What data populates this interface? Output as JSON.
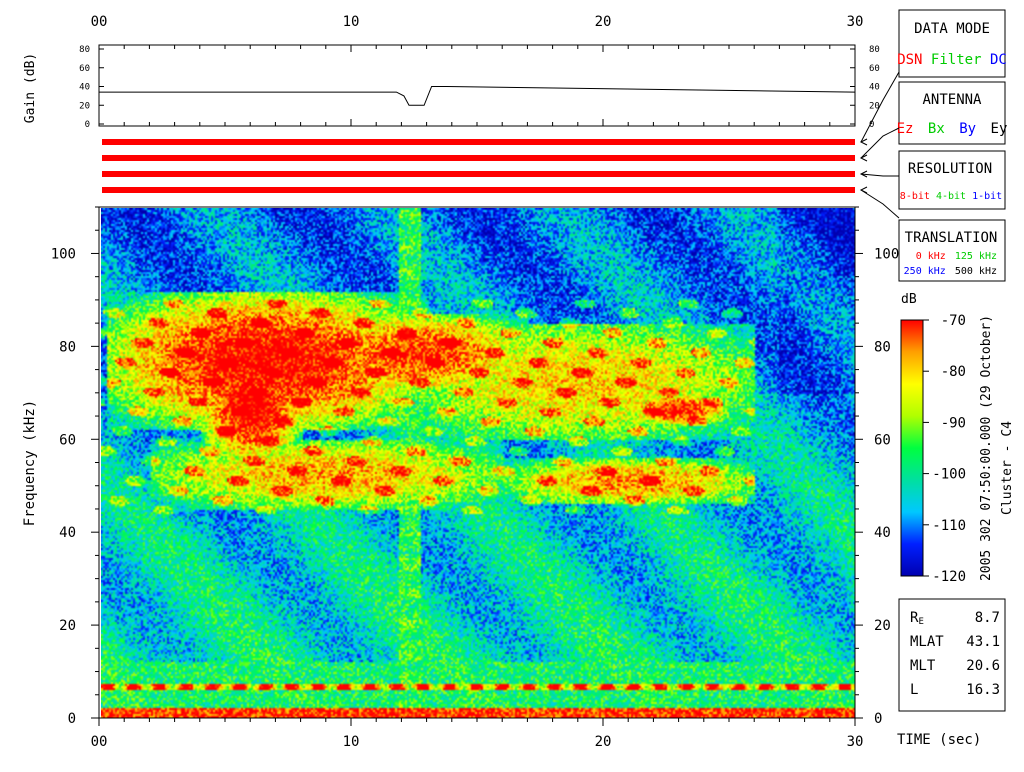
{
  "chart_data": [
    {
      "type": "line",
      "ylabel": "Gain (dB)",
      "x_ticks": [
        "00",
        "10",
        "20",
        "30"
      ],
      "y_ticks": [
        "0",
        "20",
        "40",
        "60",
        "80"
      ],
      "xlim": [
        0,
        30
      ],
      "ylim": [
        0,
        80
      ],
      "series": [
        {
          "x": [
            0,
            11.8,
            12.1,
            12.3,
            12.9,
            13.2,
            13.8,
            30
          ],
          "values": [
            34,
            34,
            30,
            20,
            20,
            40,
            40,
            34
          ]
        }
      ]
    },
    {
      "type": "heatmap",
      "xlabel": "TIME (sec)",
      "ylabel": "Frequency (kHz)",
      "x_ticks": [
        "00",
        "10",
        "20",
        "30"
      ],
      "y_ticks": [
        "0",
        "20",
        "40",
        "60",
        "80",
        "100"
      ],
      "xlim": [
        0,
        30
      ],
      "ylim": [
        0,
        110
      ],
      "colorbar": {
        "unit": "dB",
        "range": [
          -120,
          -70
        ],
        "ticks": [
          "-70",
          "-80",
          "-90",
          "-100",
          "-110",
          "-120"
        ],
        "colors": [
          "#0000b0",
          "#0020ff",
          "#00c8ff",
          "#00e0a0",
          "#00ff40",
          "#b0ff00",
          "#ffff00",
          "#ffa000",
          "#ff0000"
        ]
      },
      "emission_bands": [
        {
          "x0": 0.2,
          "x1": 13,
          "f0": 62,
          "f1": 92,
          "level": 0.95
        },
        {
          "x0": 4,
          "x1": 8,
          "f0": 55,
          "f1": 80,
          "level": 1.0
        },
        {
          "x0": 8,
          "x1": 17,
          "f0": 70,
          "f1": 87,
          "level": 0.85
        },
        {
          "x0": 12,
          "x1": 26,
          "f0": 60,
          "f1": 85,
          "level": 0.6
        },
        {
          "x0": 21,
          "x1": 25,
          "f0": 63,
          "f1": 70,
          "level": 0.9
        },
        {
          "x0": 2,
          "x1": 16,
          "f0": 45,
          "f1": 60,
          "level": 0.65
        },
        {
          "x0": 16,
          "x1": 26,
          "f0": 46,
          "f1": 56,
          "level": 0.7
        }
      ]
    }
  ],
  "panels": {
    "data_mode": {
      "title": "DATA MODE",
      "items": [
        {
          "label": "DSN",
          "color": "#ff0000"
        },
        {
          "label": "Filter",
          "color": "#00cc00"
        },
        {
          "label": "DC",
          "color": "#0000ff"
        }
      ]
    },
    "antenna": {
      "title": "ANTENNA",
      "items": [
        {
          "label": "Ez",
          "color": "#ff0000"
        },
        {
          "label": "Bx",
          "color": "#00cc00"
        },
        {
          "label": "By",
          "color": "#0000ff"
        },
        {
          "label": "Ey",
          "color": "#000000"
        }
      ]
    },
    "resolution": {
      "title": "RESOLUTION",
      "items": [
        {
          "label": "8-bit",
          "color": "#ff0000"
        },
        {
          "label": "4-bit",
          "color": "#00cc00"
        },
        {
          "label": "1-bit",
          "color": "#0000ff"
        }
      ]
    },
    "translation": {
      "title": "TRANSLATION",
      "items": [
        {
          "label": "0 kHz",
          "color": "#ff0000"
        },
        {
          "label": "125 kHz",
          "color": "#00cc00"
        },
        {
          "label": "250 kHz",
          "color": "#0000ff"
        },
        {
          "label": "500 kHz",
          "color": "#000000"
        }
      ]
    }
  },
  "side_label": "2005 302 07:50:00.000 (29 October)",
  "mission_label": "Cluster - C4",
  "orbit": [
    {
      "label": "R",
      "sub": "E",
      "value": "8.7"
    },
    {
      "label": "MLAT",
      "sub": "",
      "value": "43.1"
    },
    {
      "label": "MLT",
      "sub": "",
      "value": "20.6"
    },
    {
      "label": "L",
      "sub": "",
      "value": "16.3"
    }
  ]
}
